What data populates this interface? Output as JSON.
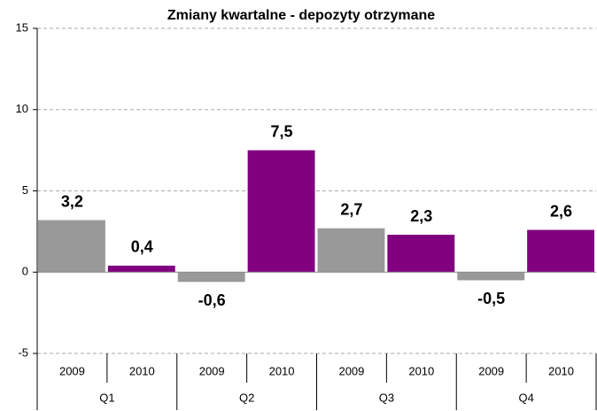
{
  "chart_data": {
    "type": "bar",
    "title": "Zmiany kwartalne - depozyty otrzymane",
    "categories": [
      "Q1",
      "Q2",
      "Q3",
      "Q4"
    ],
    "series": [
      {
        "name": "2009",
        "color": "#999999",
        "values": [
          3.2,
          -0.6,
          2.7,
          -0.5
        ],
        "value_labels": [
          "3,2",
          "-0,6",
          "2,7",
          "-0,5"
        ]
      },
      {
        "name": "2010",
        "color": "#800080",
        "values": [
          0.4,
          7.5,
          2.3,
          2.6
        ],
        "value_labels": [
          "0,4",
          "7,5",
          "2,3",
          "2,6"
        ]
      }
    ],
    "ylim": [
      -5,
      15
    ],
    "yticks": [
      -5,
      0,
      5,
      10,
      15
    ],
    "grid": true
  }
}
